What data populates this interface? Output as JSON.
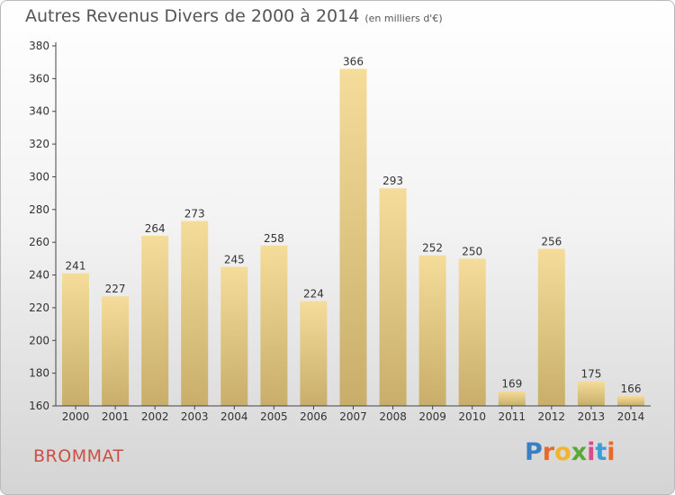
{
  "chart_data": {
    "type": "bar",
    "title": "Autres Revenus Divers de 2000 à 2014",
    "subtitle": "(en milliers d'€)",
    "categories": [
      "2000",
      "2001",
      "2002",
      "2003",
      "2004",
      "2005",
      "2006",
      "2007",
      "2008",
      "2009",
      "2010",
      "2011",
      "2012",
      "2013",
      "2014"
    ],
    "values": [
      241,
      227,
      264,
      273,
      245,
      258,
      224,
      366,
      293,
      252,
      250,
      169,
      256,
      175,
      166
    ],
    "ylim": [
      160,
      380
    ],
    "yticks": [
      160,
      180,
      200,
      220,
      240,
      260,
      280,
      300,
      320,
      340,
      360,
      380
    ],
    "grid": false,
    "colors": {
      "bar_top": "#f5dc9a",
      "bar_bottom": "#c8ae6a",
      "axis": "#444444",
      "text": "#333333"
    }
  },
  "footer": {
    "commune": "BROMMAT",
    "logo_letters": [
      {
        "ch": "P",
        "color": "#3a7fc4"
      },
      {
        "ch": "r",
        "color": "#e8692a"
      },
      {
        "ch": "o",
        "color": "#f2b42a"
      },
      {
        "ch": "x",
        "color": "#5aa83a"
      },
      {
        "ch": "i",
        "color": "#d94a8c"
      },
      {
        "ch": "t",
        "color": "#3a9fd4"
      },
      {
        "ch": "i",
        "color": "#e8692a"
      }
    ]
  }
}
